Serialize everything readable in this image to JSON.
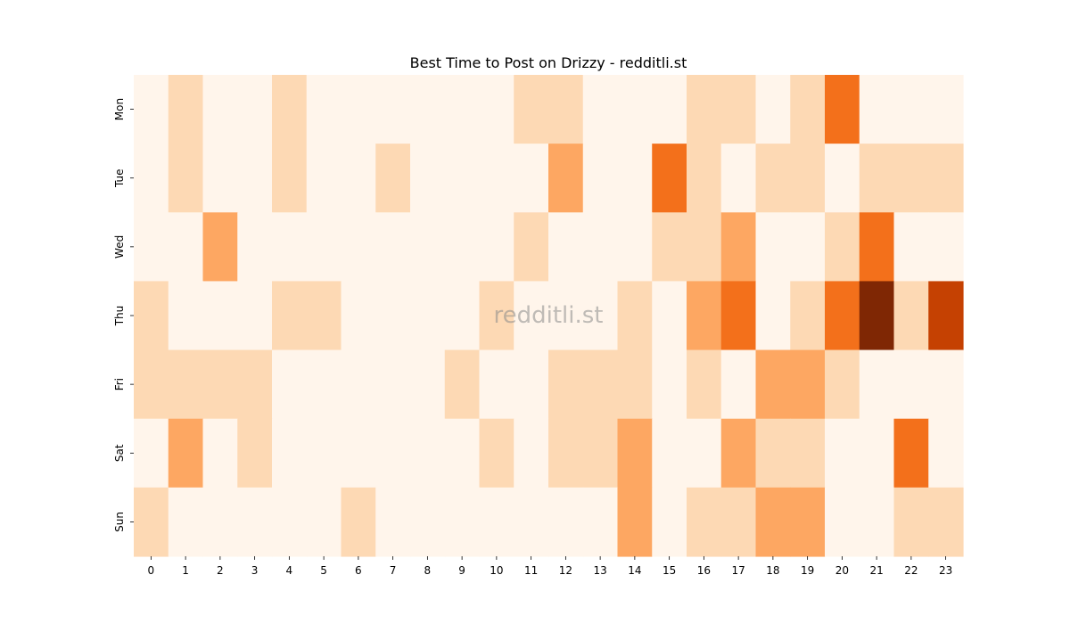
{
  "chart_data": {
    "type": "heatmap",
    "title": "Best Time to Post on Drizzy - redditli.st",
    "watermark": "redditli.st",
    "xlabel": "",
    "ylabel": "",
    "x": [
      0,
      1,
      2,
      3,
      4,
      5,
      6,
      7,
      8,
      9,
      10,
      11,
      12,
      13,
      14,
      15,
      16,
      17,
      18,
      19,
      20,
      21,
      22,
      23
    ],
    "y": [
      "Mon",
      "Tue",
      "Wed",
      "Thu",
      "Fri",
      "Sat",
      "Sun"
    ],
    "colorscale": [
      "#fff5eb",
      "#fdd9b4",
      "#fda762",
      "#f3701b",
      "#c54102",
      "#7f2704"
    ],
    "values": [
      [
        0,
        1,
        0,
        0,
        1,
        0,
        0,
        0,
        0,
        0,
        0,
        1,
        1,
        0,
        0,
        0,
        1,
        1,
        0,
        1,
        3,
        0,
        0,
        0
      ],
      [
        0,
        1,
        0,
        0,
        1,
        0,
        0,
        1,
        0,
        0,
        0,
        0,
        2,
        0,
        0,
        3,
        1,
        0,
        1,
        1,
        0,
        1,
        1,
        1
      ],
      [
        0,
        0,
        2,
        0,
        0,
        0,
        0,
        0,
        0,
        0,
        0,
        1,
        0,
        0,
        0,
        1,
        1,
        2,
        0,
        0,
        1,
        3,
        0,
        0
      ],
      [
        1,
        0,
        0,
        0,
        1,
        1,
        0,
        0,
        0,
        0,
        1,
        0,
        0,
        0,
        1,
        0,
        2,
        3,
        0,
        1,
        3,
        5,
        1,
        4
      ],
      [
        1,
        1,
        1,
        1,
        0,
        0,
        0,
        0,
        0,
        1,
        0,
        0,
        1,
        1,
        1,
        0,
        1,
        0,
        2,
        2,
        1,
        0,
        0,
        0
      ],
      [
        0,
        2,
        0,
        1,
        0,
        0,
        0,
        0,
        0,
        0,
        1,
        0,
        1,
        1,
        2,
        0,
        0,
        2,
        1,
        1,
        0,
        0,
        3,
        0
      ],
      [
        1,
        0,
        0,
        0,
        0,
        0,
        1,
        0,
        0,
        0,
        0,
        0,
        0,
        0,
        2,
        0,
        1,
        1,
        2,
        2,
        0,
        0,
        1,
        1
      ]
    ],
    "colorbar": false,
    "grid": false
  }
}
